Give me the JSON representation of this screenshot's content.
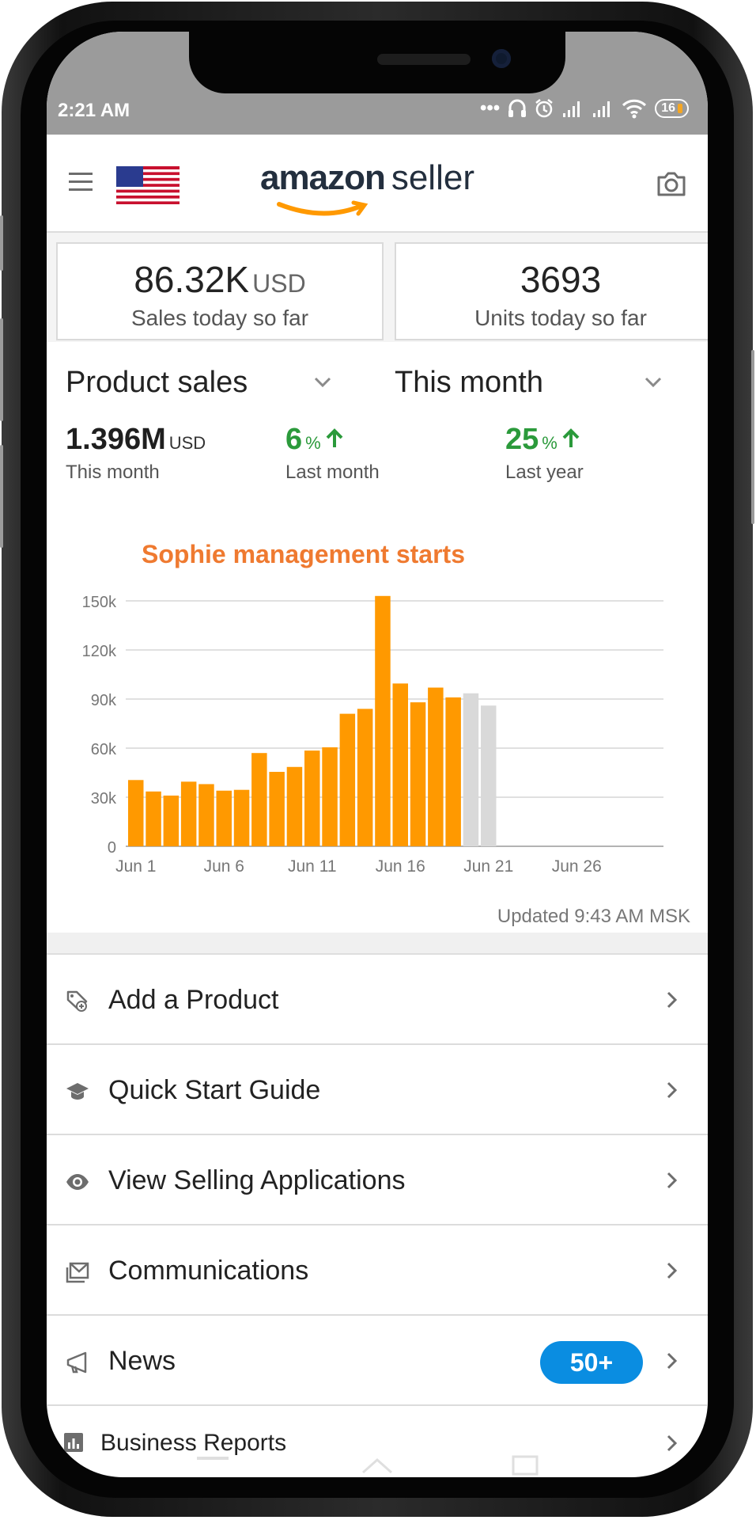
{
  "status_bar": {
    "time": "2:21 AM",
    "indicators": [
      "more-dots-icon",
      "headset-icon",
      "alarm-icon",
      "signal-icon",
      "signal-icon",
      "wifi-icon"
    ],
    "battery_level": "16"
  },
  "header": {
    "logo_primary": "amazon",
    "logo_secondary": "seller",
    "icons": [
      "menu-icon",
      "us-flag-icon",
      "camera-icon"
    ]
  },
  "metrics": {
    "sales": {
      "value": "86.32K",
      "unit": "USD",
      "label": "Sales today so far"
    },
    "units": {
      "value": "3693",
      "label": "Units today so far"
    }
  },
  "sales_panel": {
    "metric_select": "Product sales",
    "period_select": "This month",
    "total": {
      "value": "1.396M",
      "unit": "USD",
      "label": "This month"
    },
    "vs_last_month": {
      "value": "6",
      "unit": "%",
      "label": "Last month"
    },
    "vs_last_year": {
      "value": "25",
      "unit": "%",
      "label": "Last year"
    },
    "annotation": "Sophie management starts",
    "updated": "Updated 9:43 AM MSK"
  },
  "chart_data": {
    "type": "bar",
    "title": "",
    "xlabel": "",
    "ylabel": "",
    "ylim": [
      0,
      150000
    ],
    "yticks": [
      "0",
      "30k",
      "60k",
      "90k",
      "120k",
      "150k"
    ],
    "xticks": [
      "Jun 1",
      "Jun 6",
      "Jun 11",
      "Jun 16",
      "Jun 21",
      "Jun 26"
    ],
    "categories": [
      "Jun 1",
      "Jun 2",
      "Jun 3",
      "Jun 4",
      "Jun 5",
      "Jun 6",
      "Jun 7",
      "Jun 8",
      "Jun 9",
      "Jun 10",
      "Jun 11",
      "Jun 12",
      "Jun 13",
      "Jun 14",
      "Jun 15",
      "Jun 16",
      "Jun 17",
      "Jun 18",
      "Jun 19",
      "Jun 20",
      "Jun 21"
    ],
    "values": [
      40500,
      33500,
      31000,
      39500,
      38000,
      34000,
      34500,
      57000,
      45500,
      48500,
      58500,
      60500,
      81000,
      84000,
      153000,
      99500,
      88000,
      97000,
      91000,
      93500,
      86000
    ],
    "bar_colors": {
      "actual": "#ff9900",
      "projected": "#d9d9d9"
    },
    "projected_from": "Jun 20",
    "grid": true
  },
  "menu": [
    {
      "label": "Add a Product",
      "icon": "add-product-tag-icon"
    },
    {
      "label": "Quick Start Guide",
      "icon": "graduation-cap-icon"
    },
    {
      "label": "View Selling Applications",
      "icon": "eye-icon"
    },
    {
      "label": "Communications",
      "icon": "mail-icon"
    },
    {
      "label": "News",
      "icon": "megaphone-icon",
      "badge": "50+"
    },
    {
      "label": "Business Reports",
      "icon": "bar-chart-icon"
    }
  ],
  "colors": {
    "accent_orange": "#ff9900",
    "annotation": "#ef7a30",
    "positive": "#2b9a3b",
    "badge": "#0a8de1"
  }
}
